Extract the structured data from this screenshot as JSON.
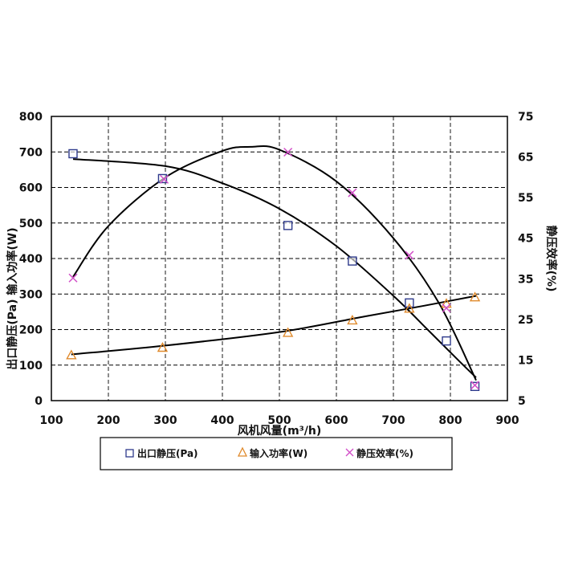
{
  "chart_data": {
    "type": "scatter",
    "title": "",
    "xlabel": "风机风量(m³/h)",
    "ylabel_left": "出口静压(Pa) 输入功率(W)",
    "ylabel_right": "静压效率(%)",
    "xlim": [
      100,
      900
    ],
    "ylim_left": [
      0,
      800
    ],
    "ylim_right": [
      5,
      75
    ],
    "x_ticks": [
      "100",
      "200",
      "300",
      "400",
      "500",
      "600",
      "700",
      "800",
      "900"
    ],
    "y_left_ticks": [
      "0",
      "100",
      "200",
      "300",
      "400",
      "500",
      "600",
      "700",
      "800"
    ],
    "y_right_ticks": [
      "5",
      "15",
      "25",
      "35",
      "45",
      "55",
      "65",
      "75"
    ],
    "grid": true,
    "legend_position": "bottom",
    "series": [
      {
        "name": "出口静压(Pa)",
        "axis": "left",
        "marker": "square",
        "color": "#2e3a8c",
        "points": [
          [
            138,
            695
          ],
          [
            295,
            625
          ],
          [
            515,
            493
          ],
          [
            628,
            393
          ],
          [
            728,
            275
          ],
          [
            793,
            168
          ],
          [
            843,
            40
          ]
        ],
        "fit": [
          [
            138,
            680
          ],
          [
            300,
            660
          ],
          [
            400,
            612
          ],
          [
            500,
            540
          ],
          [
            600,
            435
          ],
          [
            700,
            295
          ],
          [
            760,
            200
          ],
          [
            810,
            120
          ],
          [
            845,
            65
          ]
        ]
      },
      {
        "name": "输入功率(W)",
        "axis": "left",
        "marker": "triangle",
        "color": "#e08a2c",
        "points": [
          [
            135,
            127
          ],
          [
            295,
            148
          ],
          [
            515,
            190
          ],
          [
            628,
            225
          ],
          [
            728,
            258
          ],
          [
            793,
            272
          ],
          [
            843,
            290
          ]
        ],
        "fit": [
          [
            135,
            130
          ],
          [
            300,
            155
          ],
          [
            500,
            193
          ],
          [
            650,
            237
          ],
          [
            750,
            266
          ],
          [
            845,
            295
          ]
        ]
      },
      {
        "name": "静压效率(%)",
        "axis": "right",
        "marker": "x",
        "color": "#d24fc8",
        "points": [
          [
            138,
            35.2
          ],
          [
            298,
            59.5
          ],
          [
            515,
            66.2
          ],
          [
            628,
            56.2
          ],
          [
            728,
            40.8
          ],
          [
            793,
            27.8
          ],
          [
            843,
            8.8
          ]
        ],
        "fit": [
          [
            138,
            35.5
          ],
          [
            200,
            48
          ],
          [
            300,
            60
          ],
          [
            400,
            66.5
          ],
          [
            450,
            67.5
          ],
          [
            500,
            66.8
          ],
          [
            600,
            59
          ],
          [
            700,
            45
          ],
          [
            780,
            29
          ],
          [
            845,
            10
          ]
        ]
      }
    ]
  }
}
